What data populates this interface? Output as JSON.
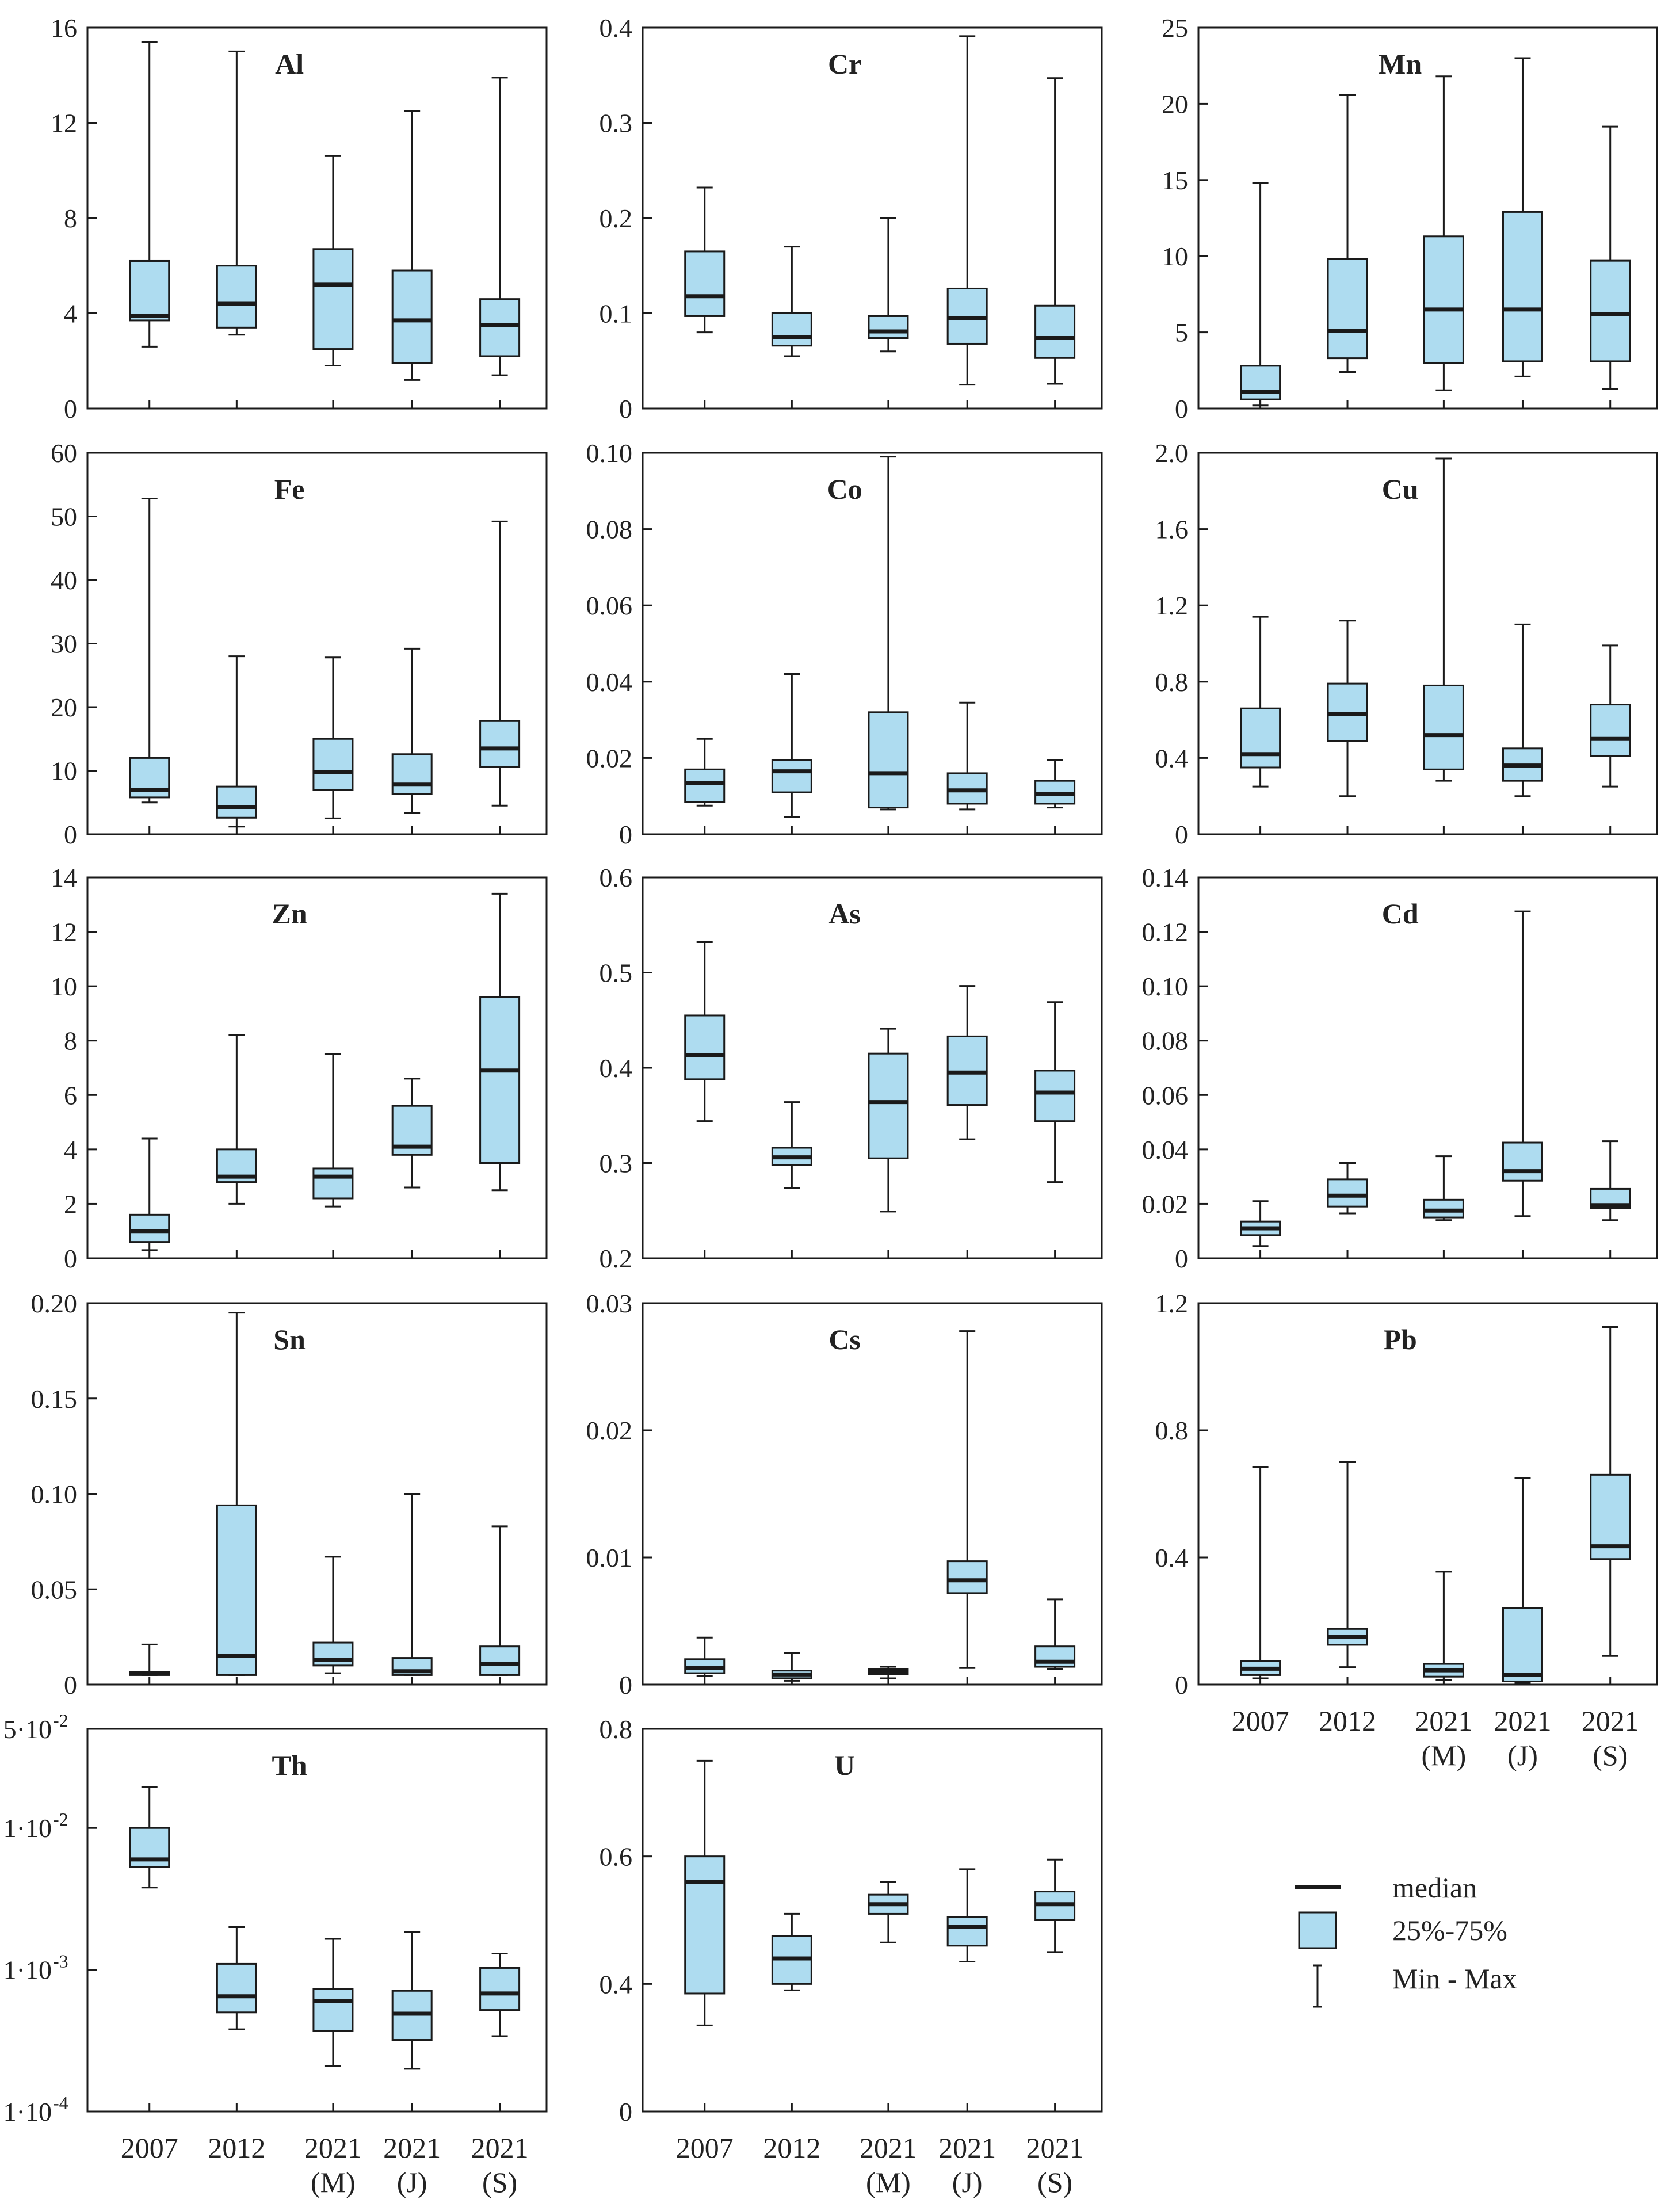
{
  "colors": {
    "box_fill": "#aedcf0",
    "stroke": "#1a1a1a",
    "background": "#ffffff"
  },
  "categories": [
    {
      "line1": "2007",
      "line2": ""
    },
    {
      "line1": "2012",
      "line2": ""
    },
    {
      "line1": "2021",
      "line2": "(M)"
    },
    {
      "line1": "2021",
      "line2": "(J)"
    },
    {
      "line1": "2021",
      "line2": "(S)"
    }
  ],
  "legend": {
    "median": "median",
    "box": "25%-75%",
    "whisker": "Min - Max"
  },
  "chart_data": [
    {
      "type": "box",
      "title": "Al",
      "ylim": [
        0,
        16
      ],
      "ticks": [
        0,
        4,
        8,
        12,
        16
      ],
      "tick_labels": [
        "0",
        "4",
        "8",
        "12",
        "16"
      ],
      "scale": "linear",
      "boxes": [
        {
          "min": 2.6,
          "q1": 3.7,
          "median": 3.9,
          "q3": 6.2,
          "max": 15.4
        },
        {
          "min": 3.1,
          "q1": 3.4,
          "median": 4.4,
          "q3": 6.0,
          "max": 15.0
        },
        {
          "min": 1.8,
          "q1": 2.5,
          "median": 5.2,
          "q3": 6.7,
          "max": 10.6
        },
        {
          "min": 1.2,
          "q1": 1.9,
          "median": 3.7,
          "q3": 5.8,
          "max": 12.5
        },
        {
          "min": 1.4,
          "q1": 2.2,
          "median": 3.5,
          "q3": 4.6,
          "max": 13.9
        }
      ]
    },
    {
      "type": "box",
      "title": "Cr",
      "ylim": [
        0,
        0.4
      ],
      "ticks": [
        0,
        0.1,
        0.2,
        0.3,
        0.4
      ],
      "tick_labels": [
        "0",
        "0.1",
        "0.2",
        "0.3",
        "0.4"
      ],
      "scale": "linear",
      "boxes": [
        {
          "min": 0.08,
          "q1": 0.097,
          "median": 0.118,
          "q3": 0.165,
          "max": 0.232
        },
        {
          "min": 0.055,
          "q1": 0.066,
          "median": 0.075,
          "q3": 0.1,
          "max": 0.17
        },
        {
          "min": 0.06,
          "q1": 0.074,
          "median": 0.081,
          "q3": 0.097,
          "max": 0.2
        },
        {
          "min": 0.025,
          "q1": 0.068,
          "median": 0.095,
          "q3": 0.126,
          "max": 0.391
        },
        {
          "min": 0.026,
          "q1": 0.053,
          "median": 0.074,
          "q3": 0.108,
          "max": 0.347
        }
      ]
    },
    {
      "type": "box",
      "title": "Mn",
      "ylim": [
        0,
        25
      ],
      "ticks": [
        0,
        5,
        10,
        15,
        20,
        25
      ],
      "tick_labels": [
        "0",
        "5",
        "10",
        "15",
        "20",
        "25"
      ],
      "scale": "linear",
      "boxes": [
        {
          "min": 0.2,
          "q1": 0.6,
          "median": 1.1,
          "q3": 2.8,
          "max": 14.8
        },
        {
          "min": 2.4,
          "q1": 3.3,
          "median": 5.1,
          "q3": 9.8,
          "max": 20.6
        },
        {
          "min": 1.2,
          "q1": 3.0,
          "median": 6.5,
          "q3": 11.3,
          "max": 21.8
        },
        {
          "min": 2.1,
          "q1": 3.1,
          "median": 6.5,
          "q3": 12.9,
          "max": 23.0
        },
        {
          "min": 1.3,
          "q1": 3.1,
          "median": 6.2,
          "q3": 9.7,
          "max": 18.5
        }
      ]
    },
    {
      "type": "box",
      "title": "Fe",
      "ylim": [
        0,
        60
      ],
      "ticks": [
        0,
        10,
        20,
        30,
        40,
        50,
        60
      ],
      "tick_labels": [
        "0",
        "10",
        "20",
        "30",
        "40",
        "50",
        "60"
      ],
      "scale": "linear",
      "boxes": [
        {
          "min": 5.0,
          "q1": 5.8,
          "median": 7.0,
          "q3": 12.0,
          "max": 52.8
        },
        {
          "min": 1.2,
          "q1": 2.6,
          "median": 4.3,
          "q3": 7.5,
          "max": 28.0
        },
        {
          "min": 2.5,
          "q1": 7.0,
          "median": 9.8,
          "q3": 15.0,
          "max": 27.8
        },
        {
          "min": 3.3,
          "q1": 6.3,
          "median": 7.8,
          "q3": 12.6,
          "max": 29.2
        },
        {
          "min": 4.5,
          "q1": 10.6,
          "median": 13.5,
          "q3": 17.8,
          "max": 49.2
        }
      ]
    },
    {
      "type": "box",
      "title": "Co",
      "ylim": [
        0,
        0.1
      ],
      "ticks": [
        0,
        0.02,
        0.04,
        0.06,
        0.08,
        0.1
      ],
      "tick_labels": [
        "0",
        "0.02",
        "0.04",
        "0.06",
        "0.08",
        "0.10"
      ],
      "scale": "linear",
      "boxes": [
        {
          "min": 0.0075,
          "q1": 0.0085,
          "median": 0.0135,
          "q3": 0.017,
          "max": 0.025
        },
        {
          "min": 0.0045,
          "q1": 0.011,
          "median": 0.0165,
          "q3": 0.0195,
          "max": 0.042
        },
        {
          "min": 0.0065,
          "q1": 0.007,
          "median": 0.016,
          "q3": 0.032,
          "max": 0.099
        },
        {
          "min": 0.0065,
          "q1": 0.008,
          "median": 0.0115,
          "q3": 0.016,
          "max": 0.0345
        },
        {
          "min": 0.007,
          "q1": 0.008,
          "median": 0.0105,
          "q3": 0.014,
          "max": 0.0195
        }
      ]
    },
    {
      "type": "box",
      "title": "Cu",
      "ylim": [
        0,
        2
      ],
      "ticks": [
        0,
        0.4,
        0.8,
        1.2,
        1.6,
        2.0
      ],
      "tick_labels": [
        "0",
        "0.4",
        "0.8",
        "1.2",
        "1.6",
        "2.0"
      ],
      "scale": "linear",
      "boxes": [
        {
          "min": 0.25,
          "q1": 0.35,
          "median": 0.42,
          "q3": 0.66,
          "max": 1.14
        },
        {
          "min": 0.2,
          "q1": 0.49,
          "median": 0.63,
          "q3": 0.79,
          "max": 1.12
        },
        {
          "min": 0.28,
          "q1": 0.34,
          "median": 0.52,
          "q3": 0.78,
          "max": 1.97
        },
        {
          "min": 0.2,
          "q1": 0.28,
          "median": 0.36,
          "q3": 0.45,
          "max": 1.1
        },
        {
          "min": 0.25,
          "q1": 0.41,
          "median": 0.5,
          "q3": 0.68,
          "max": 0.99
        }
      ]
    },
    {
      "type": "box",
      "title": "Zn",
      "ylim": [
        0,
        14
      ],
      "ticks": [
        0,
        2,
        4,
        6,
        8,
        10,
        12,
        14
      ],
      "tick_labels": [
        "0",
        "2",
        "4",
        "6",
        "8",
        "10",
        "12",
        "14"
      ],
      "scale": "linear",
      "boxes": [
        {
          "min": 0.3,
          "q1": 0.6,
          "median": 1.0,
          "q3": 1.6,
          "max": 4.4
        },
        {
          "min": 2.0,
          "q1": 2.8,
          "median": 3.0,
          "q3": 4.0,
          "max": 8.2
        },
        {
          "min": 1.9,
          "q1": 2.2,
          "median": 3.0,
          "q3": 3.3,
          "max": 7.5
        },
        {
          "min": 2.6,
          "q1": 3.8,
          "median": 4.1,
          "q3": 5.6,
          "max": 6.6
        },
        {
          "min": 2.5,
          "q1": 3.5,
          "median": 6.9,
          "q3": 9.6,
          "max": 13.4
        }
      ]
    },
    {
      "type": "box",
      "title": "As",
      "ylim": [
        0.2,
        0.6
      ],
      "ticks": [
        0.2,
        0.3,
        0.4,
        0.5,
        0.6
      ],
      "tick_labels": [
        "0.2",
        "0.3",
        "0.4",
        "0.5",
        "0.6"
      ],
      "scale": "linear",
      "boxes": [
        {
          "min": 0.344,
          "q1": 0.388,
          "median": 0.413,
          "q3": 0.455,
          "max": 0.532
        },
        {
          "min": 0.274,
          "q1": 0.298,
          "median": 0.306,
          "q3": 0.316,
          "max": 0.364
        },
        {
          "min": 0.249,
          "q1": 0.305,
          "median": 0.364,
          "q3": 0.415,
          "max": 0.441
        },
        {
          "min": 0.325,
          "q1": 0.361,
          "median": 0.395,
          "q3": 0.433,
          "max": 0.486
        },
        {
          "min": 0.28,
          "q1": 0.344,
          "median": 0.374,
          "q3": 0.397,
          "max": 0.469
        }
      ]
    },
    {
      "type": "box",
      "title": "Cd",
      "ylim": [
        0,
        0.14
      ],
      "ticks": [
        0,
        0.02,
        0.04,
        0.06,
        0.08,
        0.1,
        0.12,
        0.14
      ],
      "tick_labels": [
        "0",
        "0.02",
        "0.04",
        "0.06",
        "0.08",
        "0.10",
        "0.12",
        "0.14"
      ],
      "scale": "linear",
      "boxes": [
        {
          "min": 0.0045,
          "q1": 0.0085,
          "median": 0.011,
          "q3": 0.0135,
          "max": 0.021
        },
        {
          "min": 0.0165,
          "q1": 0.019,
          "median": 0.023,
          "q3": 0.029,
          "max": 0.035
        },
        {
          "min": 0.014,
          "q1": 0.015,
          "median": 0.0175,
          "q3": 0.0215,
          "max": 0.0375
        },
        {
          "min": 0.0155,
          "q1": 0.0285,
          "median": 0.032,
          "q3": 0.0425,
          "max": 0.1275
        },
        {
          "min": 0.014,
          "q1": 0.0185,
          "median": 0.0195,
          "q3": 0.0255,
          "max": 0.043
        }
      ]
    },
    {
      "type": "box",
      "title": "Sn",
      "ylim": [
        0,
        0.2
      ],
      "ticks": [
        0,
        0.05,
        0.1,
        0.15,
        0.2
      ],
      "tick_labels": [
        "0",
        "0.05",
        "0.10",
        "0.15",
        "0.20"
      ],
      "scale": "linear",
      "boxes": [
        {
          "min": 0.005,
          "q1": 0.005,
          "median": 0.006,
          "q3": 0.0065,
          "max": 0.021
        },
        {
          "min": 0.005,
          "q1": 0.005,
          "median": 0.015,
          "q3": 0.094,
          "max": 0.195
        },
        {
          "min": 0.006,
          "q1": 0.01,
          "median": 0.013,
          "q3": 0.022,
          "max": 0.067
        },
        {
          "min": 0.005,
          "q1": 0.005,
          "median": 0.007,
          "q3": 0.014,
          "max": 0.1
        },
        {
          "min": 0.005,
          "q1": 0.005,
          "median": 0.011,
          "q3": 0.02,
          "max": 0.083
        }
      ]
    },
    {
      "type": "box",
      "title": "Cs",
      "ylim": [
        0,
        0.03
      ],
      "ticks": [
        0,
        0.01,
        0.02,
        0.03
      ],
      "tick_labels": [
        "0",
        "0.01",
        "0.02",
        "0.03"
      ],
      "scale": "linear",
      "boxes": [
        {
          "min": 0.0007,
          "q1": 0.0009,
          "median": 0.0013,
          "q3": 0.002,
          "max": 0.0037
        },
        {
          "min": 0.0003,
          "q1": 0.0005,
          "median": 0.0008,
          "q3": 0.0011,
          "max": 0.0025
        },
        {
          "min": 0.0005,
          "q1": 0.0008,
          "median": 0.001,
          "q3": 0.0012,
          "max": 0.0014
        },
        {
          "min": 0.0013,
          "q1": 0.0072,
          "median": 0.0082,
          "q3": 0.0097,
          "max": 0.0278
        },
        {
          "min": 0.0012,
          "q1": 0.0014,
          "median": 0.0018,
          "q3": 0.003,
          "max": 0.0067
        }
      ]
    },
    {
      "type": "box",
      "title": "Pb",
      "ylim": [
        0,
        1.2
      ],
      "ticks": [
        0,
        0.4,
        0.8,
        1.2
      ],
      "tick_labels": [
        "0",
        "0.4",
        "0.8",
        "1.2"
      ],
      "scale": "linear",
      "boxes": [
        {
          "min": 0.02,
          "q1": 0.03,
          "median": 0.05,
          "q3": 0.075,
          "max": 0.685
        },
        {
          "min": 0.055,
          "q1": 0.125,
          "median": 0.15,
          "q3": 0.175,
          "max": 0.7
        },
        {
          "min": 0.015,
          "q1": 0.025,
          "median": 0.045,
          "q3": 0.065,
          "max": 0.355
        },
        {
          "min": 0.005,
          "q1": 0.01,
          "median": 0.03,
          "q3": 0.24,
          "max": 0.65
        },
        {
          "min": 0.09,
          "q1": 0.395,
          "median": 0.435,
          "q3": 0.66,
          "max": 1.125
        }
      ]
    },
    {
      "type": "box",
      "title": "Th",
      "ylim": [
        0.0001,
        0.05
      ],
      "ticks": [
        0.0001,
        0.001,
        0.01,
        0.05
      ],
      "tick_labels": [
        "1·10",
        "1·10",
        "1·10",
        "5·10"
      ],
      "tick_exponents": [
        "-4",
        "-3",
        "-2",
        "-2"
      ],
      "scale": "log",
      "boxes": [
        {
          "min": 0.0038,
          "q1": 0.0053,
          "median": 0.006,
          "q3": 0.01,
          "max": 0.0195
        },
        {
          "min": 0.00038,
          "q1": 0.0005,
          "median": 0.00065,
          "q3": 0.0011,
          "max": 0.002
        },
        {
          "min": 0.00021,
          "q1": 0.00037,
          "median": 0.0006,
          "q3": 0.00073,
          "max": 0.00165
        },
        {
          "min": 0.0002,
          "q1": 0.00032,
          "median": 0.00049,
          "q3": 0.00071,
          "max": 0.00185
        },
        {
          "min": 0.00034,
          "q1": 0.00052,
          "median": 0.00068,
          "q3": 0.00103,
          "max": 0.0013
        }
      ]
    },
    {
      "type": "box",
      "title": "U",
      "ylim": [
        0,
        0.8
      ],
      "ticks": [
        0,
        0.4,
        0.6,
        0.8
      ],
      "tick_labels": [
        "0",
        "0.4",
        "0.6",
        "0.8"
      ],
      "scale": "custom",
      "tick_positions_note": "axis is non-linear: 0, 0.4, 0.6, 0.8 equally spaced",
      "boxes": [
        {
          "min": 0.27,
          "q1": 0.37,
          "median": 0.56,
          "q3": 0.6,
          "max": 0.75
        },
        {
          "min": 0.38,
          "q1": 0.4,
          "median": 0.44,
          "q3": 0.475,
          "max": 0.51
        },
        {
          "min": 0.465,
          "q1": 0.51,
          "median": 0.525,
          "q3": 0.54,
          "max": 0.56
        },
        {
          "min": 0.435,
          "q1": 0.46,
          "median": 0.49,
          "q3": 0.505,
          "max": 0.58
        },
        {
          "min": 0.45,
          "q1": 0.5,
          "median": 0.525,
          "q3": 0.545,
          "max": 0.595
        }
      ]
    }
  ]
}
